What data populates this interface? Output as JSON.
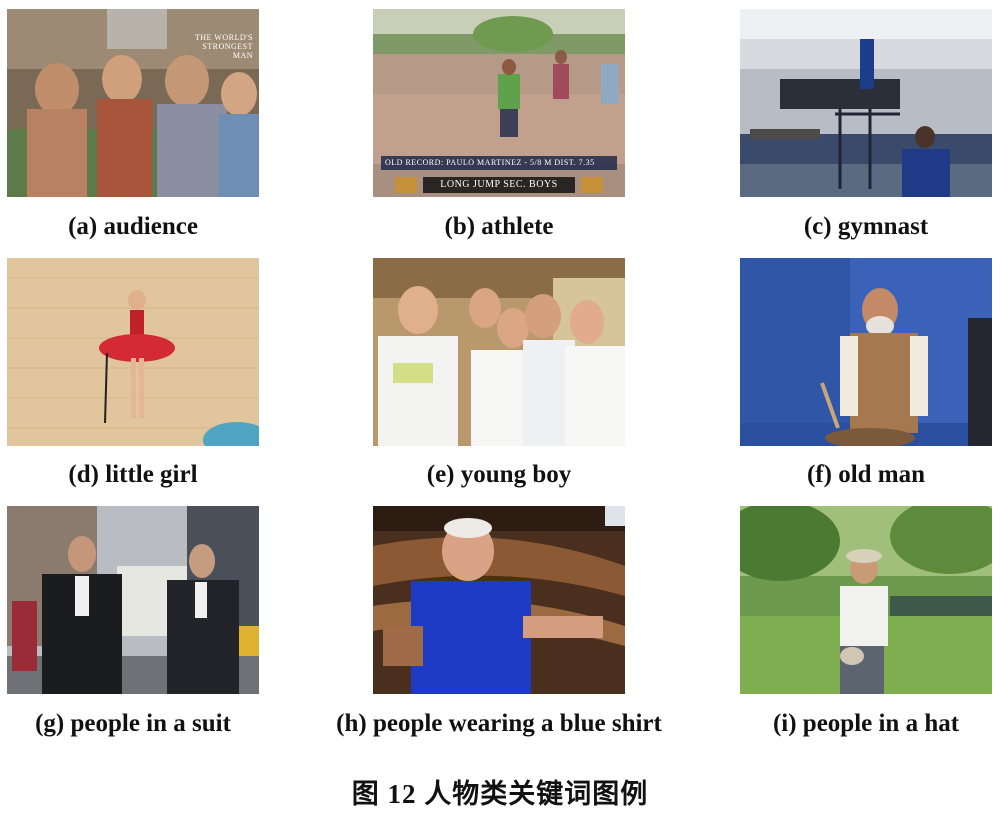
{
  "panels": [
    {
      "caption": "(a) audience",
      "scene": "audience",
      "overlay": "THE WORLD'S STRONGEST MAN"
    },
    {
      "caption": "(b) athlete",
      "scene": "athlete",
      "overlay_top": "OLD RECORD: PAULO MARTINEZ - 5/8 M   DIST. 7.35",
      "overlay_bottom": "LONG JUMP  SEC. BOYS"
    },
    {
      "caption": "(c) gymnast",
      "scene": "gymnast"
    },
    {
      "caption": "(d) little girl",
      "scene": "little girl"
    },
    {
      "caption": "(e) young boy",
      "scene": "young boy"
    },
    {
      "caption": "(f) old man",
      "scene": "old man"
    },
    {
      "caption": "(g) people in a suit",
      "scene": "people in a suit"
    },
    {
      "caption": "(h) people wearing a blue shirt",
      "scene": "people wearing a blue shirt"
    },
    {
      "caption": "(i) people in a hat",
      "scene": "people in a hat"
    }
  ],
  "figure_caption": "图 12    人物类关键词图例"
}
